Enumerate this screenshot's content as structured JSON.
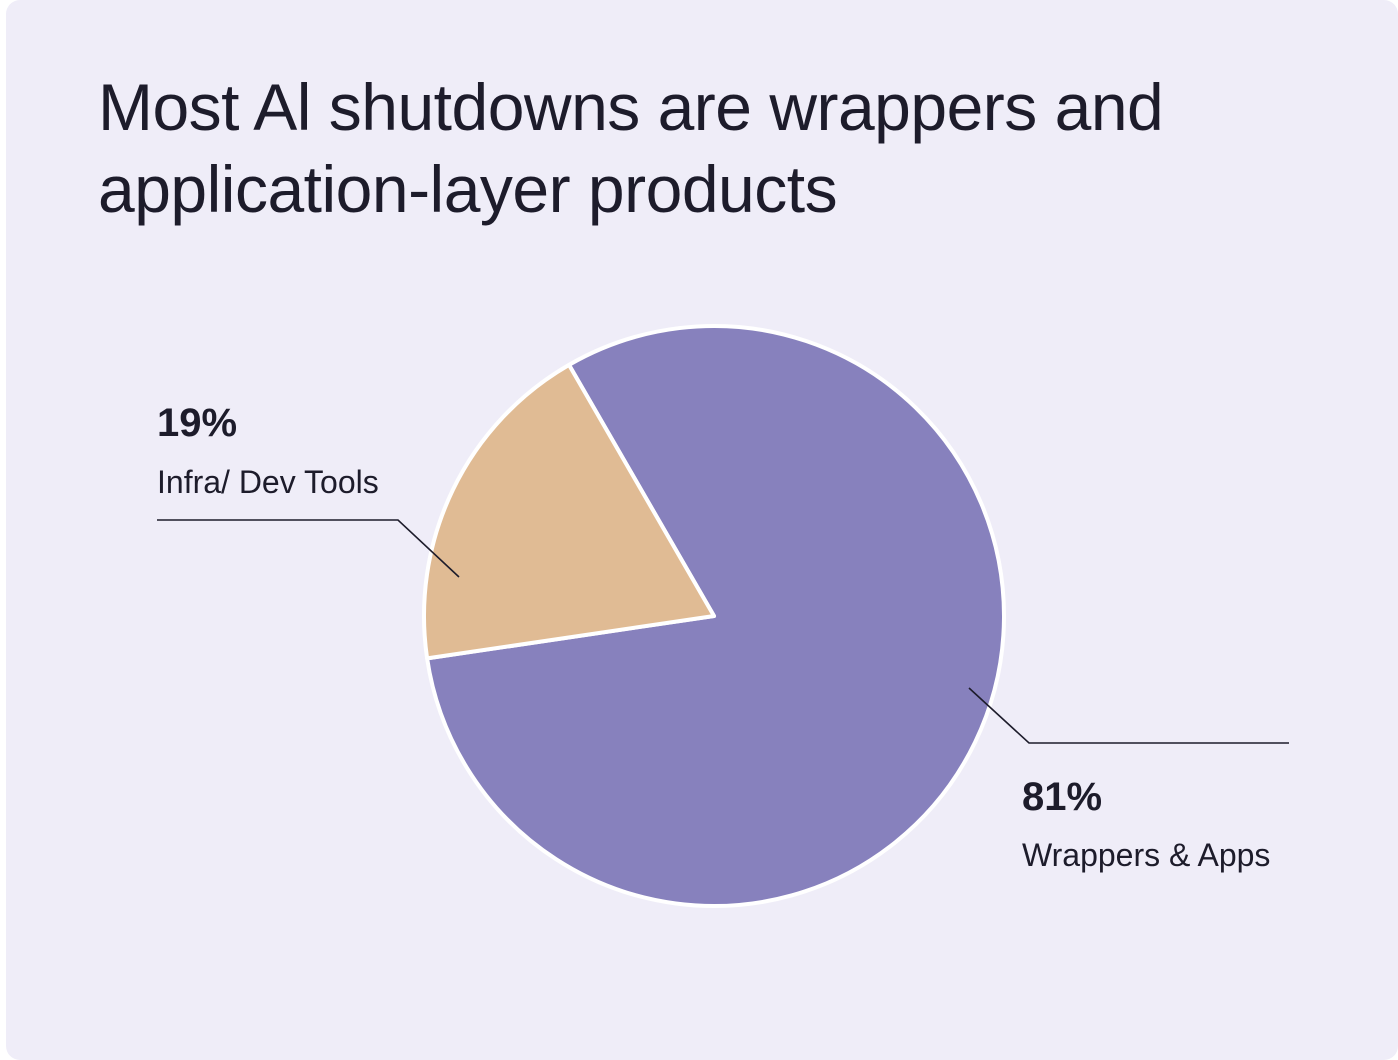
{
  "chart_data": {
    "type": "pie",
    "title": "Most Al shutdowns are wrappers and application-layer products",
    "slices": [
      {
        "label": "Wrappers & Apps",
        "value": 81,
        "value_label": "81%",
        "color": "#8781bd"
      },
      {
        "label": "Infra/ Dev Tools",
        "value": 19,
        "value_label": "19%",
        "color": "#e0bb94"
      }
    ],
    "legend": "none",
    "slice_border_color": "#ffffff"
  }
}
